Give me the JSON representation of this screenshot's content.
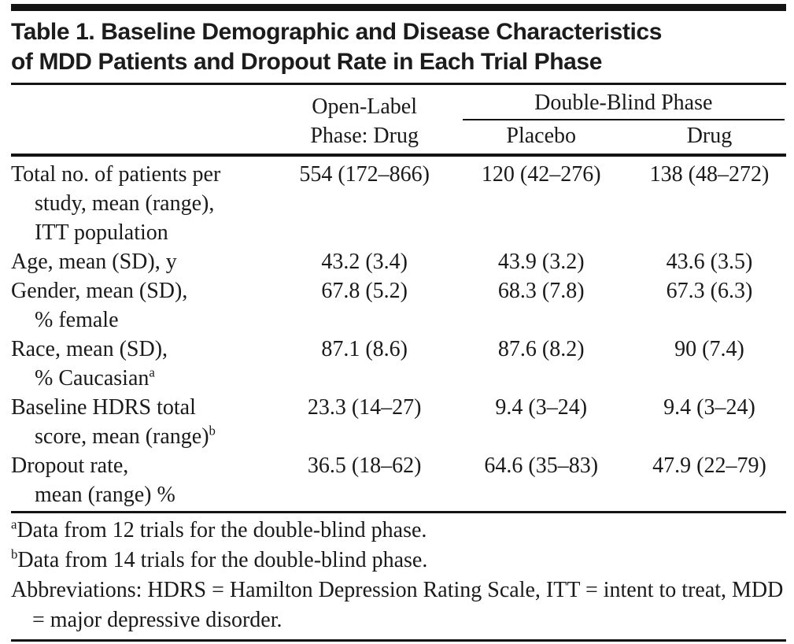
{
  "title": {
    "line1": "Table 1. Baseline Demographic and Disease Characteristics",
    "line2": "of MDD Patients and Dropout Rate in Each Trial Phase"
  },
  "header": {
    "open_label_line1": "Open-Label",
    "open_label_line2": "Phase: Drug",
    "double_blind": "Double-Blind Phase",
    "placebo": "Placebo",
    "drug": "Drug"
  },
  "rows": [
    {
      "label1": "Total no. of patients per",
      "label2": "study, mean (range),",
      "label3": "ITT population",
      "open_label": "554 (172–866)",
      "placebo": "120 (42–276)",
      "drug": "138 (48–272)"
    },
    {
      "label1": "Age, mean (SD), y",
      "open_label": "43.2 (3.4)",
      "placebo": "43.9 (3.2)",
      "drug": "43.6 (3.5)"
    },
    {
      "label1": "Gender, mean (SD),",
      "label2": "% female",
      "open_label": "67.8 (5.2)",
      "placebo": "68.3 (7.8)",
      "drug": "67.3 (6.3)"
    },
    {
      "label1": "Race, mean (SD),",
      "label2": "% Caucasian",
      "label2_sup": "a",
      "open_label": "87.1 (8.6)",
      "placebo": "87.6 (8.2)",
      "drug": "90 (7.4)"
    },
    {
      "label1": "Baseline HDRS total",
      "label2": "score, mean (range)",
      "label2_sup": "b",
      "open_label": "23.3 (14–27)",
      "placebo": "9.4 (3–24)",
      "drug": "9.4 (3–24)"
    },
    {
      "label1": "Dropout rate,",
      "label2": "mean (range) %",
      "open_label": "36.5 (18–62)",
      "placebo": "64.6 (35–83)",
      "drug": "47.9 (22–79)"
    }
  ],
  "footnotes": [
    {
      "marker": "a",
      "text": "Data from 12 trials for the double-blind phase."
    },
    {
      "marker": "b",
      "text": "Data from 14 trials for the double-blind phase."
    },
    {
      "marker": "",
      "text": "Abbreviations: HDRS = Hamilton Depression Rating Scale, ITT = intent to treat, MDD = major depressive disorder."
    }
  ],
  "colors": {
    "text": "#1a1a1a",
    "rule": "#141414",
    "background": "#ffffff"
  }
}
